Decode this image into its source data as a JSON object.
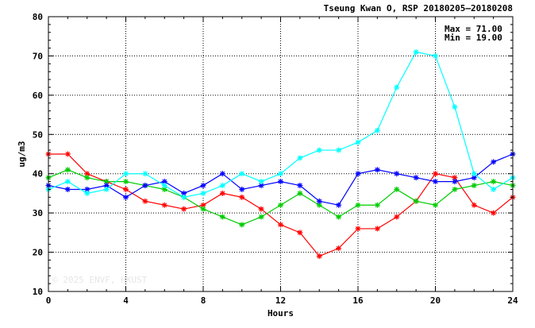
{
  "chart_data": {
    "type": "line",
    "title": "Tseung Kwan O, RSP 20180205—20180208",
    "xlabel": "Hours",
    "ylabel": "ug/m3",
    "xlim": [
      0,
      24
    ],
    "ylim": [
      10,
      80
    ],
    "x_ticks": [
      "0",
      "4",
      "8",
      "12",
      "16",
      "20",
      "24"
    ],
    "y_ticks": [
      "10",
      "20",
      "30",
      "40",
      "50",
      "60",
      "70",
      "80"
    ],
    "grid": true,
    "marker": "asterisk",
    "max_text": "Max = 71.00",
    "min_text": "Min = 19.00",
    "watermark": "© 2025  ENVF, HKUST",
    "x": [
      0,
      1,
      2,
      3,
      4,
      5,
      6,
      7,
      8,
      9,
      10,
      11,
      12,
      13,
      14,
      15,
      16,
      17,
      18,
      19,
      20,
      21,
      22,
      23,
      24
    ],
    "series": [
      {
        "color": "#ff0000",
        "values": [
          45,
          45,
          40,
          38,
          36,
          33,
          32,
          31,
          32,
          35,
          34,
          31,
          27,
          25,
          19,
          21,
          26,
          26,
          29,
          33,
          40,
          39,
          32,
          30,
          34
        ]
      },
      {
        "color": "#00cc00",
        "values": [
          39,
          41,
          39,
          38,
          38,
          37,
          36,
          34,
          31,
          29,
          27,
          29,
          32,
          35,
          32,
          29,
          32,
          32,
          36,
          33,
          32,
          36,
          37,
          38,
          37
        ]
      },
      {
        "color": "#0000ff",
        "values": [
          37,
          36,
          36,
          37,
          34,
          37,
          38,
          35,
          37,
          40,
          36,
          37,
          38,
          37,
          33,
          32,
          40,
          41,
          40,
          39,
          38,
          38,
          39,
          43,
          45
        ]
      },
      {
        "color": "#00ffff",
        "values": [
          36,
          38,
          35,
          36,
          40,
          40,
          37,
          34,
          35,
          37,
          40,
          38,
          40,
          44,
          46,
          46,
          48,
          51,
          62,
          71,
          70,
          57,
          40,
          36,
          39
        ]
      }
    ]
  }
}
